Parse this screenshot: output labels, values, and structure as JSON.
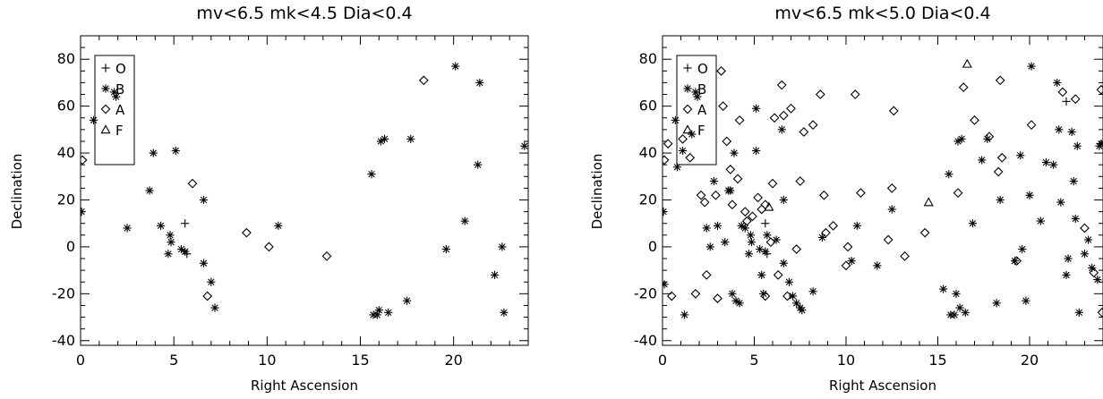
{
  "chart_data": [
    {
      "type": "scatter",
      "title": "mv<6.5  mk<4.5  Dia<0.4",
      "xlabel": "Right Ascension",
      "ylabel": "Declination",
      "xlim": [
        0,
        24
      ],
      "ylim": [
        -42,
        90
      ],
      "xticks": [
        0,
        5,
        10,
        15,
        20
      ],
      "yticks": [
        -40,
        -20,
        0,
        20,
        40,
        60,
        80
      ],
      "grid": false,
      "legend_position": "top-left",
      "series": [
        {
          "name": "O",
          "marker": "plus",
          "points": [
            [
              5.6,
              10
            ],
            [
              5.7,
              -3
            ]
          ]
        },
        {
          "name": "B",
          "marker": "asterisk",
          "points": [
            [
              0.05,
              15
            ],
            [
              0.7,
              54
            ],
            [
              1.8,
              66
            ],
            [
              1.9,
              64
            ],
            [
              2.5,
              8
            ],
            [
              3.7,
              24
            ],
            [
              3.9,
              40
            ],
            [
              4.3,
              9
            ],
            [
              4.7,
              -3
            ],
            [
              4.8,
              5
            ],
            [
              4.85,
              2
            ],
            [
              5.1,
              41
            ],
            [
              5.4,
              -1
            ],
            [
              5.6,
              -2
            ],
            [
              6.6,
              20
            ],
            [
              6.6,
              -7
            ],
            [
              7.0,
              -15
            ],
            [
              7.2,
              -26
            ],
            [
              10.6,
              9
            ],
            [
              15.6,
              31
            ],
            [
              15.7,
              -29
            ],
            [
              15.9,
              -29
            ],
            [
              16.0,
              -27
            ],
            [
              16.1,
              45
            ],
            [
              16.3,
              46
            ],
            [
              16.5,
              -28
            ],
            [
              17.5,
              -23
            ],
            [
              17.7,
              46
            ],
            [
              19.6,
              -1
            ],
            [
              20.1,
              77
            ],
            [
              20.6,
              11
            ],
            [
              21.3,
              35
            ],
            [
              21.4,
              70
            ],
            [
              22.2,
              -12
            ],
            [
              22.6,
              0
            ],
            [
              22.7,
              -28
            ],
            [
              23.8,
              43
            ]
          ]
        },
        {
          "name": "A",
          "marker": "diamond",
          "points": [
            [
              0.1,
              37
            ],
            [
              6.0,
              27
            ],
            [
              6.8,
              -21
            ],
            [
              8.9,
              6
            ],
            [
              10.1,
              0
            ],
            [
              13.2,
              -4
            ],
            [
              18.4,
              71
            ]
          ]
        },
        {
          "name": "F",
          "marker": "triangle",
          "points": []
        }
      ]
    },
    {
      "type": "scatter",
      "title": "mv<6.5  mk<5.0  Dia<0.4",
      "xlabel": "Right Ascension",
      "ylabel": "Declination",
      "xlim": [
        0,
        24
      ],
      "ylim": [
        -42,
        90
      ],
      "xticks": [
        0,
        5,
        10,
        15,
        20
      ],
      "yticks": [
        -40,
        -20,
        0,
        20,
        40,
        60,
        80
      ],
      "grid": false,
      "legend_position": "top-left",
      "series": [
        {
          "name": "O",
          "marker": "plus",
          "points": [
            [
              5.6,
              10
            ],
            [
              5.7,
              -3
            ],
            [
              22.0,
              62
            ]
          ]
        },
        {
          "name": "B",
          "marker": "asterisk",
          "points": [
            [
              0.05,
              15
            ],
            [
              0.1,
              -16
            ],
            [
              0.7,
              54
            ],
            [
              0.8,
              34
            ],
            [
              1.1,
              41
            ],
            [
              1.2,
              -29
            ],
            [
              1.6,
              48
            ],
            [
              1.8,
              66
            ],
            [
              1.9,
              64
            ],
            [
              2.4,
              8
            ],
            [
              2.6,
              0
            ],
            [
              2.8,
              28
            ],
            [
              3.0,
              9
            ],
            [
              3.4,
              2
            ],
            [
              3.6,
              24
            ],
            [
              3.7,
              24
            ],
            [
              3.8,
              -20
            ],
            [
              3.9,
              40
            ],
            [
              4.0,
              -23
            ],
            [
              4.2,
              -24
            ],
            [
              4.3,
              9
            ],
            [
              4.5,
              8
            ],
            [
              4.7,
              -3
            ],
            [
              4.8,
              5
            ],
            [
              4.85,
              2
            ],
            [
              5.1,
              41
            ],
            [
              5.1,
              59
            ],
            [
              5.3,
              -1
            ],
            [
              5.4,
              -12
            ],
            [
              5.5,
              -20
            ],
            [
              5.6,
              -2
            ],
            [
              5.7,
              5
            ],
            [
              6.2,
              3
            ],
            [
              6.5,
              50
            ],
            [
              6.6,
              20
            ],
            [
              6.6,
              -7
            ],
            [
              6.9,
              -15
            ],
            [
              7.1,
              -21
            ],
            [
              7.3,
              -24
            ],
            [
              7.5,
              -26
            ],
            [
              7.6,
              -27
            ],
            [
              8.2,
              -19
            ],
            [
              8.7,
              4
            ],
            [
              10.3,
              -6
            ],
            [
              10.6,
              9
            ],
            [
              11.7,
              -8
            ],
            [
              12.5,
              16
            ],
            [
              15.3,
              -18
            ],
            [
              15.6,
              31
            ],
            [
              15.7,
              -29
            ],
            [
              15.9,
              -29
            ],
            [
              16.0,
              -20
            ],
            [
              16.1,
              45
            ],
            [
              16.2,
              -26
            ],
            [
              16.3,
              46
            ],
            [
              16.5,
              -28
            ],
            [
              16.9,
              10
            ],
            [
              17.4,
              37
            ],
            [
              17.7,
              46
            ],
            [
              18.2,
              -24
            ],
            [
              18.4,
              20
            ],
            [
              19.2,
              -6
            ],
            [
              19.5,
              39
            ],
            [
              19.6,
              -1
            ],
            [
              19.8,
              -23
            ],
            [
              20.0,
              22
            ],
            [
              20.1,
              77
            ],
            [
              20.6,
              11
            ],
            [
              20.9,
              36
            ],
            [
              21.3,
              35
            ],
            [
              21.5,
              70
            ],
            [
              21.6,
              50
            ],
            [
              21.7,
              19
            ],
            [
              22.0,
              -12
            ],
            [
              22.1,
              -5
            ],
            [
              22.3,
              49
            ],
            [
              22.4,
              28
            ],
            [
              22.5,
              12
            ],
            [
              22.6,
              43
            ],
            [
              22.7,
              -28
            ],
            [
              23.0,
              -3
            ],
            [
              23.2,
              3
            ],
            [
              23.4,
              -9
            ],
            [
              23.7,
              -14
            ],
            [
              23.8,
              43
            ],
            [
              23.9,
              44
            ]
          ]
        },
        {
          "name": "A",
          "marker": "diamond",
          "points": [
            [
              0.1,
              37
            ],
            [
              0.3,
              44
            ],
            [
              0.5,
              -21
            ],
            [
              1.1,
              46
            ],
            [
              1.5,
              38
            ],
            [
              1.8,
              -20
            ],
            [
              2.1,
              22
            ],
            [
              2.3,
              19
            ],
            [
              2.4,
              -12
            ],
            [
              2.9,
              22
            ],
            [
              3.0,
              -22
            ],
            [
              3.2,
              75
            ],
            [
              3.3,
              60
            ],
            [
              3.5,
              45
            ],
            [
              3.7,
              33
            ],
            [
              3.8,
              18
            ],
            [
              4.1,
              29
            ],
            [
              4.2,
              54
            ],
            [
              4.5,
              15
            ],
            [
              4.6,
              11
            ],
            [
              4.9,
              13
            ],
            [
              5.2,
              21
            ],
            [
              5.4,
              16
            ],
            [
              5.6,
              -21
            ],
            [
              5.9,
              2
            ],
            [
              6.0,
              27
            ],
            [
              6.1,
              55
            ],
            [
              6.3,
              -12
            ],
            [
              6.5,
              69
            ],
            [
              6.6,
              56
            ],
            [
              6.8,
              -21
            ],
            [
              7.0,
              59
            ],
            [
              7.3,
              -1
            ],
            [
              7.5,
              28
            ],
            [
              7.7,
              49
            ],
            [
              8.2,
              52
            ],
            [
              8.6,
              65
            ],
            [
              8.8,
              22
            ],
            [
              8.9,
              6
            ],
            [
              9.3,
              9
            ],
            [
              10.0,
              -8
            ],
            [
              10.1,
              0
            ],
            [
              10.5,
              65
            ],
            [
              10.8,
              23
            ],
            [
              12.3,
              3
            ],
            [
              12.5,
              25
            ],
            [
              12.6,
              58
            ],
            [
              13.2,
              -4
            ],
            [
              14.3,
              6
            ],
            [
              16.1,
              23
            ],
            [
              16.4,
              68
            ],
            [
              17.0,
              54
            ],
            [
              17.8,
              47
            ],
            [
              18.3,
              32
            ],
            [
              18.4,
              71
            ],
            [
              18.5,
              38
            ],
            [
              19.3,
              -6
            ],
            [
              20.1,
              52
            ],
            [
              21.8,
              66
            ],
            [
              22.5,
              63
            ],
            [
              23.0,
              8
            ],
            [
              23.5,
              -11
            ],
            [
              23.9,
              67
            ],
            [
              23.95,
              -28
            ],
            [
              5.6,
              18
            ]
          ]
        },
        {
          "name": "F",
          "marker": "triangle",
          "points": [
            [
              5.8,
              17
            ],
            [
              14.5,
              19
            ],
            [
              16.6,
              78
            ]
          ]
        }
      ]
    }
  ],
  "colors": {
    "background": "#ffffff",
    "ink": "#000000"
  }
}
